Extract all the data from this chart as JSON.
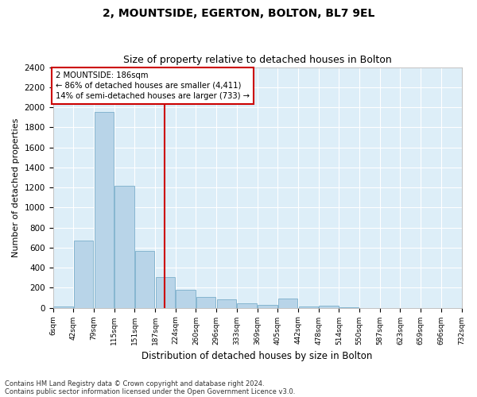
{
  "title": "2, MOUNTSIDE, EGERTON, BOLTON, BL7 9EL",
  "subtitle": "Size of property relative to detached houses in Bolton",
  "xlabel": "Distribution of detached houses by size in Bolton",
  "ylabel": "Number of detached properties",
  "footnote1": "Contains HM Land Registry data © Crown copyright and database right 2024.",
  "footnote2": "Contains public sector information licensed under the Open Government Licence v3.0.",
  "annotation_line1": "2 MOUNTSIDE: 186sqm",
  "annotation_line2": "← 86% of detached houses are smaller (4,411)",
  "annotation_line3": "14% of semi-detached houses are larger (733) →",
  "bar_heights": [
    10,
    670,
    1950,
    1220,
    570,
    305,
    175,
    110,
    80,
    45,
    25,
    90,
    10,
    20,
    5,
    0,
    0,
    0,
    0,
    0
  ],
  "bar_color": "#b8d4e8",
  "bar_edgecolor": "#7aaecb",
  "vline_color": "#cc0000",
  "vline_index": 5,
  "ylim": [
    0,
    2400
  ],
  "yticks": [
    0,
    200,
    400,
    600,
    800,
    1000,
    1200,
    1400,
    1600,
    1800,
    2000,
    2200,
    2400
  ],
  "tick_labels": [
    "6sqm",
    "42sqm",
    "79sqm",
    "115sqm",
    "151sqm",
    "187sqm",
    "224sqm",
    "260sqm",
    "296sqm",
    "333sqm",
    "369sqm",
    "405sqm",
    "442sqm",
    "478sqm",
    "514sqm",
    "550sqm",
    "587sqm",
    "623sqm",
    "659sqm",
    "696sqm",
    "732sqm"
  ],
  "background_color": "#ddeef8",
  "title_fontsize": 10,
  "subtitle_fontsize": 9,
  "annot_box_facecolor": "#ffffff",
  "annot_box_edgecolor": "#cc0000"
}
